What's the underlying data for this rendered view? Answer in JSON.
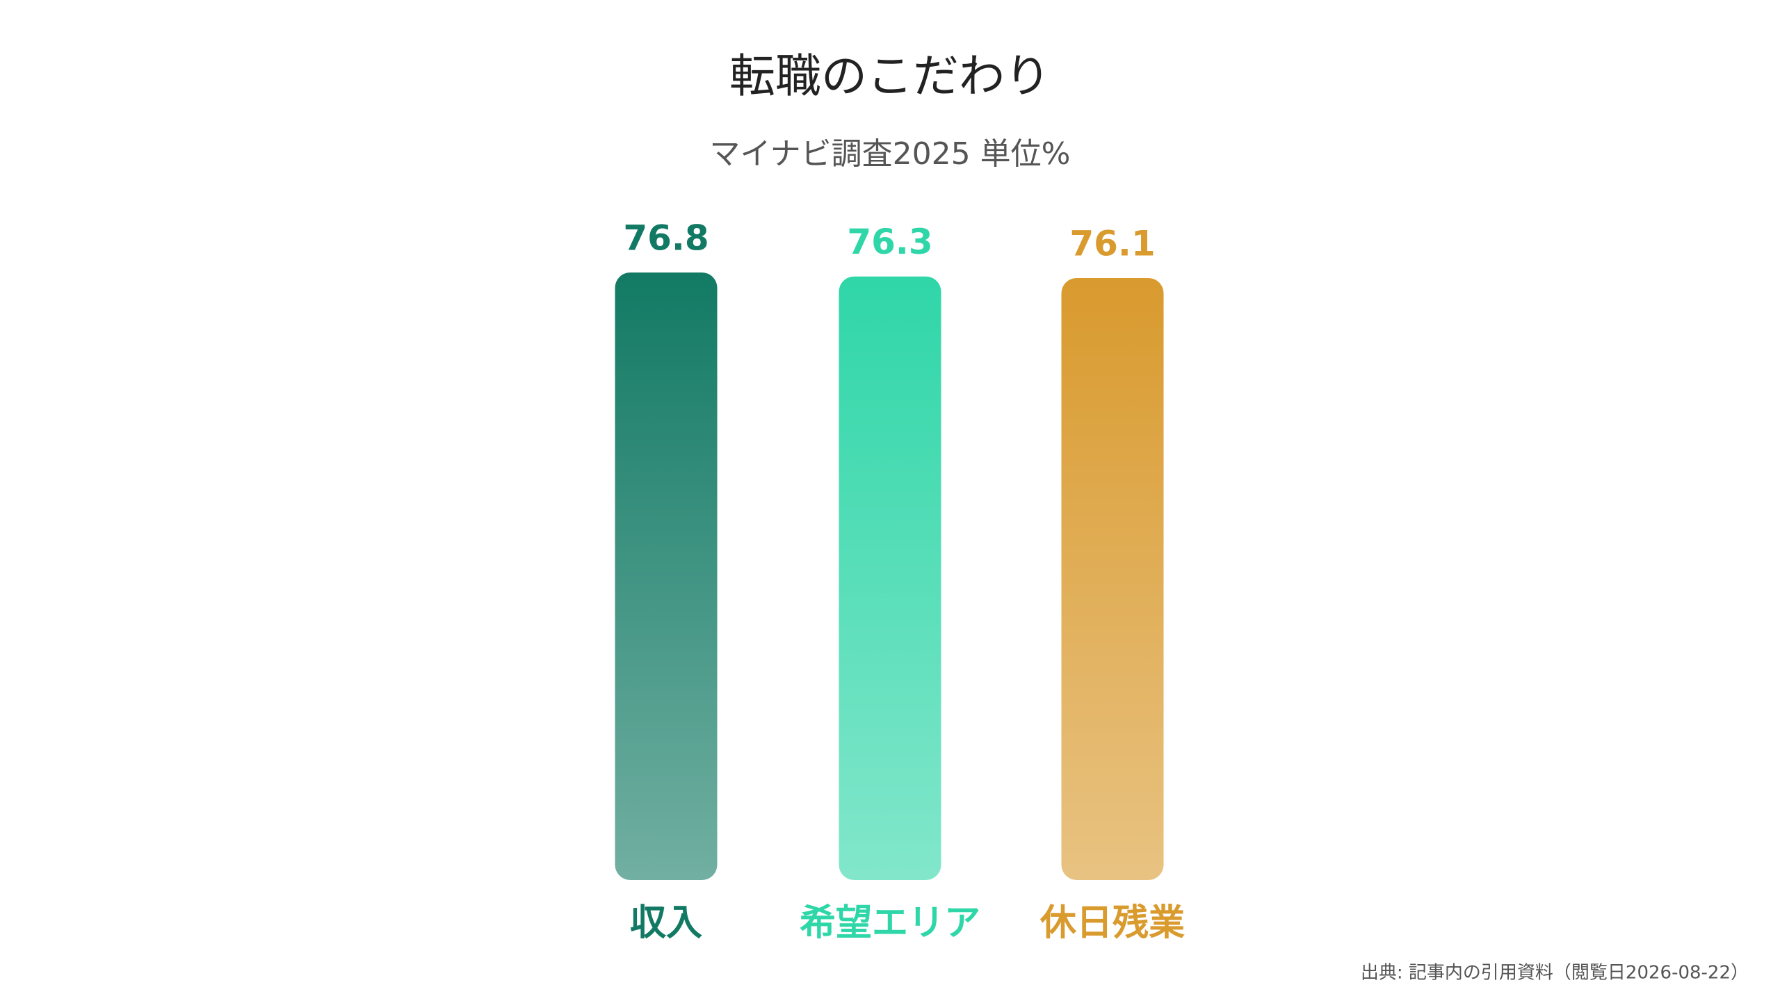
{
  "chart_data": {
    "type": "bar",
    "title": "転職のこだわり",
    "subtitle": "マイナビ調査2025 単位%",
    "categories": [
      "収入",
      "希望エリア",
      "休日残業"
    ],
    "values": [
      76.8,
      76.3,
      76.1
    ],
    "colors": [
      "#127a64",
      "#2fd6a8",
      "#d99a2e"
    ],
    "source": "出典: 記事内の引用資料（閲覧日2026-08-22）"
  }
}
